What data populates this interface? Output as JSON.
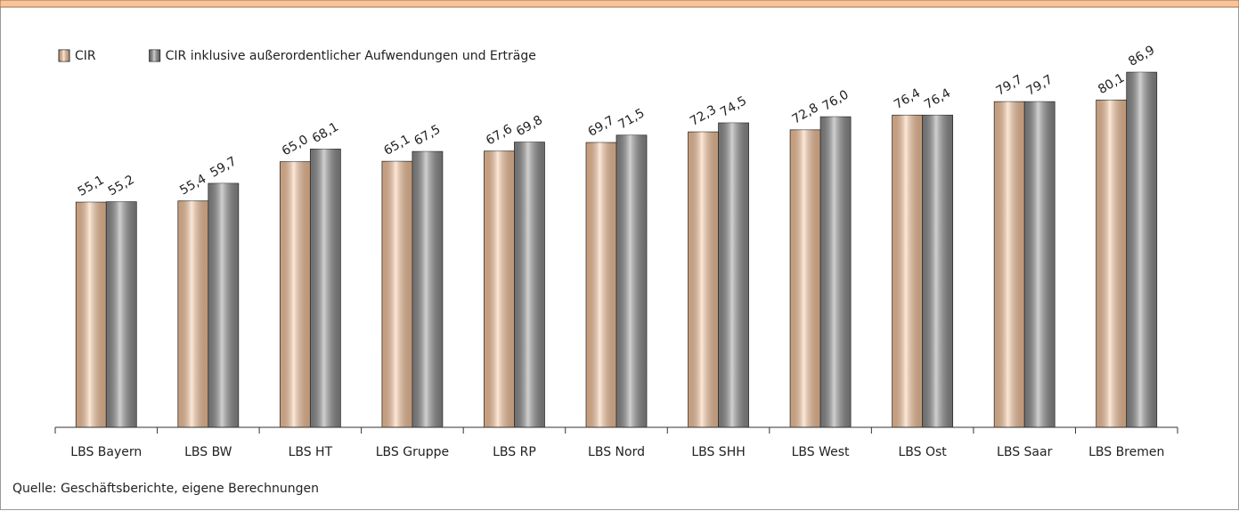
{
  "chart_data": {
    "type": "bar",
    "categories": [
      "LBS Bayern",
      "LBS BW",
      "LBS HT",
      "LBS Gruppe",
      "LBS RP",
      "LBS Nord",
      "LBS SHH",
      "LBS West",
      "LBS Ost",
      "LBS Saar",
      "LBS Bremen"
    ],
    "series": [
      {
        "name": "CIR",
        "color": "#f9c49a",
        "values": [
          55.1,
          55.4,
          65.0,
          65.1,
          67.6,
          69.7,
          72.3,
          72.8,
          76.4,
          79.7,
          80.1
        ],
        "value_labels": [
          "55,1",
          "55,4",
          "65,0",
          "65,1",
          "67,6",
          "69,7",
          "72,3",
          "72,8",
          "76,4",
          "79,7",
          "80,1"
        ]
      },
      {
        "name": "CIR inklusive außerordentlicher Aufwendungen und Erträge",
        "color": "#8a8a8a",
        "values": [
          55.2,
          59.7,
          68.1,
          67.5,
          69.8,
          71.5,
          74.5,
          76.0,
          76.4,
          79.7,
          86.9
        ],
        "value_labels": [
          "55,2",
          "59,7",
          "68,1",
          "67,5",
          "69,8",
          "71,5",
          "74,5",
          "76,0",
          "76,4",
          "79,7",
          "86,9"
        ]
      }
    ],
    "ylim": [
      0,
      100
    ],
    "source": "Quelle: Geschäftsberichte, eigene Berechnungen"
  }
}
